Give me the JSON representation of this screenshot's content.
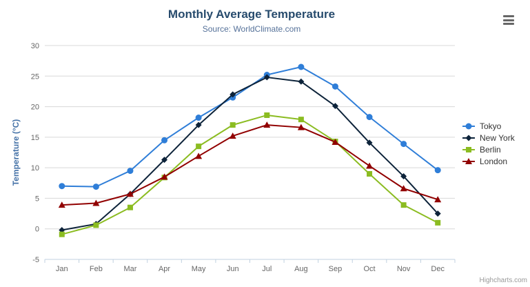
{
  "chart": {
    "title": "Monthly Average Temperature",
    "subtitle": "Source: WorldClimate.com",
    "credit": "Highcharts.com"
  },
  "chart_data": {
    "type": "line",
    "title": "Monthly Average Temperature",
    "subtitle": "Source: WorldClimate.com",
    "categories": [
      "Jan",
      "Feb",
      "Mar",
      "Apr",
      "May",
      "Jun",
      "Jul",
      "Aug",
      "Sep",
      "Oct",
      "Nov",
      "Dec"
    ],
    "xlabel": "",
    "ylabel": "Temperature (°C)",
    "ylim": [
      -5,
      30
    ],
    "ytick_step": 5,
    "grid": true,
    "legend_position": "right",
    "series": [
      {
        "name": "Tokyo",
        "color": "#2f7ed8",
        "marker": "circle",
        "values": [
          7.0,
          6.9,
          9.5,
          14.5,
          18.2,
          21.5,
          25.2,
          26.5,
          23.3,
          18.3,
          13.9,
          9.6
        ]
      },
      {
        "name": "New York",
        "color": "#0d233a",
        "marker": "diamond",
        "values": [
          -0.2,
          0.8,
          5.7,
          11.3,
          17.0,
          22.0,
          24.8,
          24.1,
          20.1,
          14.1,
          8.6,
          2.5
        ]
      },
      {
        "name": "Berlin",
        "color": "#8bbc21",
        "marker": "square",
        "values": [
          -0.9,
          0.6,
          3.5,
          8.4,
          13.5,
          17.0,
          18.6,
          17.9,
          14.3,
          9.0,
          3.9,
          1.0
        ]
      },
      {
        "name": "London",
        "color": "#910000",
        "marker": "triangle",
        "values": [
          3.9,
          4.2,
          5.7,
          8.5,
          11.9,
          15.2,
          17.0,
          16.6,
          14.2,
          10.3,
          6.6,
          4.8
        ]
      }
    ]
  },
  "colors": {
    "title": "#274b6d",
    "subtitle": "#557199",
    "yaxis_title": "#4572a7",
    "tick_label": "#666666",
    "gridline": "#d8d8d8",
    "axis_line": "#c0d0e0",
    "legend_text": "#333333",
    "credit": "#999999"
  }
}
